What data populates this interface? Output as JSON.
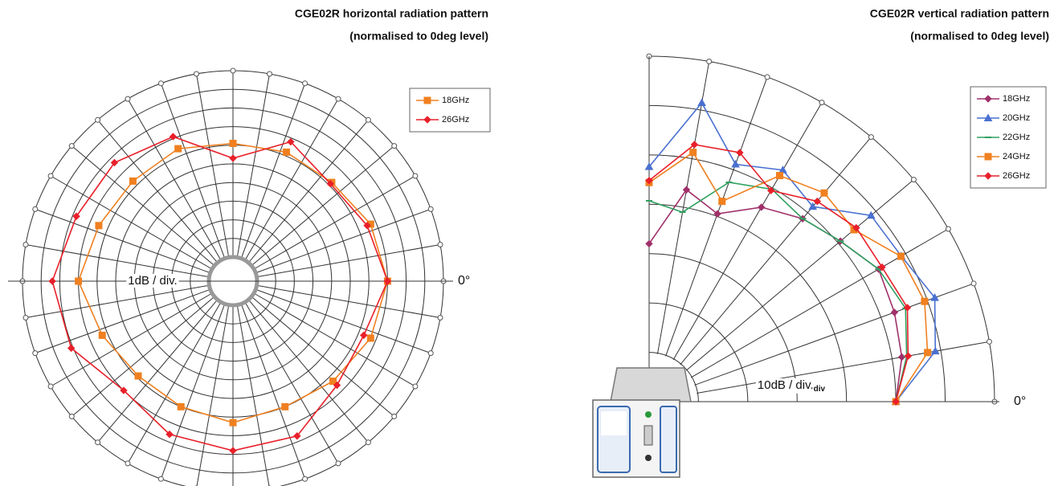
{
  "chart_data": [
    {
      "type": "polar",
      "title": "CGE02R horizontal radiation pattern",
      "subtitle": "(normalised to 0deg level)",
      "radial_label": "1dB / div.",
      "angle_label": "0°",
      "thetalim": [
        0,
        360
      ],
      "rlim": [
        -7,
        3
      ],
      "rticks": [
        -6,
        -5,
        -4,
        -3,
        -2,
        -1,
        0,
        1,
        2,
        3
      ],
      "theta": [
        0,
        22.5,
        45,
        67.5,
        90,
        112.5,
        135,
        157.5,
        180,
        202.5,
        225,
        247.5,
        270,
        292.5,
        315,
        337.5
      ],
      "legend": "upper right",
      "series": [
        {
          "name": "18GHz",
          "color": "#f08020",
          "marker": "square",
          "values": [
            0,
            -0.3,
            -0.8,
            -0.8,
            -0.9,
            -0.6,
            -0.7,
            -0.5,
            0,
            -0.7,
            -1.1,
            -1.0,
            -0.7,
            -1.0,
            -0.7,
            -0.3
          ]
        },
        {
          "name": "26GHz",
          "color": "#e8202a",
          "marker": "diamond",
          "values": [
            0,
            -0.5,
            -0.9,
            -0.2,
            -1.7,
            0.1,
            0.7,
            0.8,
            1.4,
            1.1,
            0,
            0.6,
            0.8,
            0.7,
            -0.4,
            -0.7
          ]
        }
      ]
    },
    {
      "type": "polar",
      "title": "CGE02R vertical radiation pattern",
      "subtitle": "(normalised to 0deg level)",
      "radial_label": "10dB / div.",
      "radial_label_sub": "div",
      "angle_label": "0°",
      "thetalim": [
        0,
        90
      ],
      "rlim": [
        -50,
        20
      ],
      "rticks": [
        -40,
        -30,
        -20,
        -10,
        0,
        10,
        20
      ],
      "theta": [
        0,
        10,
        20,
        30,
        40,
        50,
        60,
        70,
        80,
        90
      ],
      "legend": "upper right",
      "series": [
        {
          "name": "18GHz",
          "color": "#a0306a",
          "marker": "diamond",
          "values": [
            0,
            2,
            2.9,
            3.7,
            0.6,
            -1.6,
            -4.5,
            -9.5,
            -6.4,
            -18
          ]
        },
        {
          "name": "20GHz",
          "color": "#4a70d0",
          "marker": "triangle",
          "values": [
            0,
            8.9,
            11.6,
            9.0,
            8.7,
            1.6,
            4.2,
            1.2,
            11.5,
            -2.4
          ]
        },
        {
          "name": "22GHz",
          "color": "#30a060",
          "marker": "dash",
          "values": [
            0,
            3,
            5.3,
            3.7,
            0.6,
            -1.6,
            -0.3,
            -2.7,
            -11,
            -9.3
          ]
        },
        {
          "name": "24GHz",
          "color": "#f08020",
          "marker": "square",
          "values": [
            0,
            7.3,
            9.4,
            8.9,
            4.2,
            5.2,
            2.9,
            -6.8,
            1.3,
            -5.6
          ]
        },
        {
          "name": "26GHz",
          "color": "#e8202a",
          "marker": "diamond",
          "values": [
            0,
            3.3,
            5.7,
            4.5,
            4.8,
            3,
            -0.6,
            3.7,
            2.9,
            -5.2
          ]
        }
      ]
    }
  ]
}
